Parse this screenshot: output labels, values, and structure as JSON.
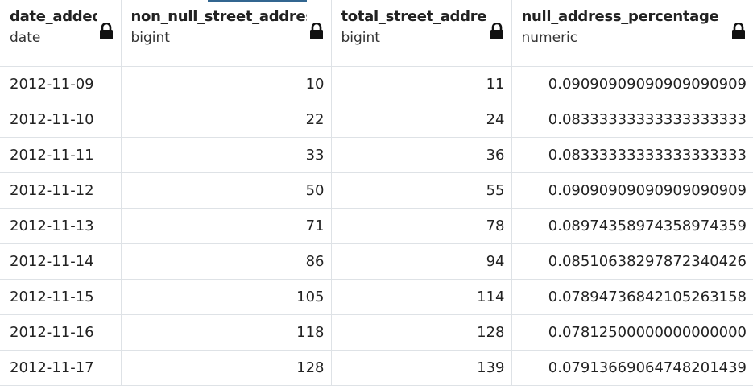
{
  "table": {
    "columns": [
      {
        "name": "date_added",
        "type": "date"
      },
      {
        "name": "non_null_street_address",
        "type": "bigint"
      },
      {
        "name": "total_street_address",
        "type": "bigint"
      },
      {
        "name": "null_address_percentage",
        "type": "numeric"
      }
    ],
    "rows": [
      [
        "2012-11-09",
        10,
        11,
        "0.09090909090909090909"
      ],
      [
        "2012-11-10",
        22,
        24,
        "0.08333333333333333333"
      ],
      [
        "2012-11-11",
        33,
        36,
        "0.08333333333333333333"
      ],
      [
        "2012-11-12",
        50,
        55,
        "0.09090909090909090909"
      ],
      [
        "2012-11-13",
        71,
        78,
        "0.08974358974358974359"
      ],
      [
        "2012-11-14",
        86,
        94,
        "0.08510638297872340426"
      ],
      [
        "2012-11-15",
        105,
        114,
        "0.07894736842105263158"
      ],
      [
        "2012-11-16",
        118,
        128,
        "0.07812500000000000000"
      ],
      [
        "2012-11-17",
        128,
        139,
        "0.07913669064748201439"
      ]
    ]
  }
}
